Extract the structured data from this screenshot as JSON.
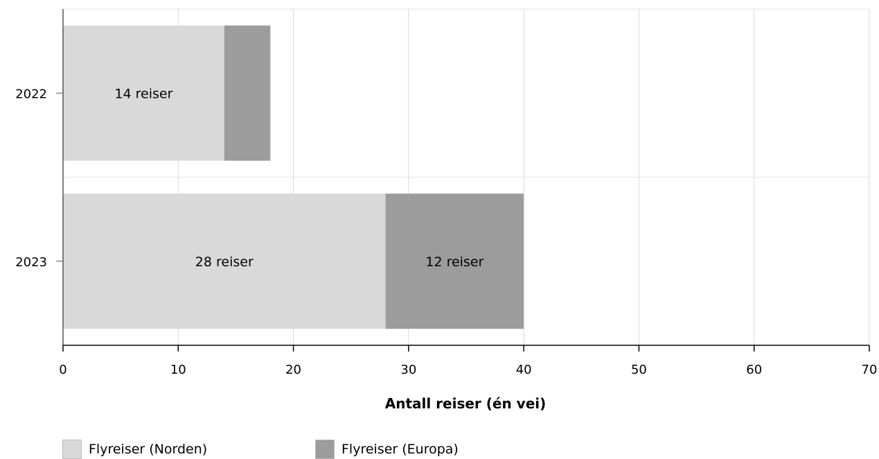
{
  "chart_data": {
    "type": "bar",
    "orientation": "horizontal",
    "stacked": true,
    "categories": [
      "2022",
      "2023"
    ],
    "series": [
      {
        "name": "Flyreiser (Norden)",
        "values": [
          14,
          28
        ],
        "color": "#d9d9d9",
        "labels": [
          "14 reiser",
          "28 reiser"
        ]
      },
      {
        "name": "Flyreiser (Europa)",
        "values": [
          4,
          12
        ],
        "color": "#9c9c9c",
        "labels": [
          "",
          "12 reiser"
        ]
      }
    ],
    "xlabel": "Antall reiser (én vei)",
    "ylabel": "",
    "title": "",
    "xlim": [
      0,
      70
    ],
    "xticks": [
      "0",
      "10",
      "20",
      "30",
      "40",
      "50",
      "60",
      "70"
    ],
    "grid": true,
    "legend_position": "bottom-left"
  }
}
